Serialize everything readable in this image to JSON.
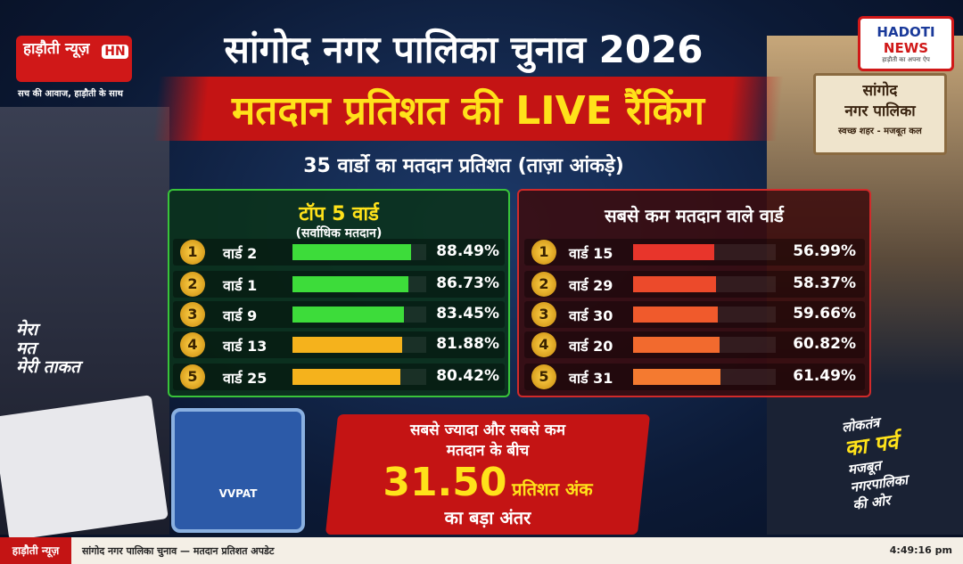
{
  "brand": {
    "name": "हाड़ौती न्यूज़",
    "badge": "HN",
    "tagline": "सच की आवाज, हाड़ौती के साथ"
  },
  "logo": {
    "line1": "HADOTI",
    "line2": "NEWS",
    "tagline": "हाड़ौती का अपना ऐप"
  },
  "header": {
    "title": "सांगोद नगर पालिका चुनाव 2026",
    "headline": "मतदान प्रतिशत की LIVE रैंकिंग",
    "subtitle": "35 वार्डो का मतदान प्रतिशत (ताज़ा आंकड़े)"
  },
  "building": {
    "line1": "सांगोद",
    "line2": "नगर पालिका",
    "line3": "स्वच्छ शहर - मजबूत कल"
  },
  "top_panel": {
    "title": "टॉप 5 वार्ड",
    "subtitle": "(सर्वाधिक मतदान)",
    "rows": [
      {
        "rank": 1,
        "ward": "वार्ड 2",
        "value": 88.49,
        "value_label": "88.49%",
        "color": "#3ddc3a"
      },
      {
        "rank": 2,
        "ward": "वार्ड 1",
        "value": 86.73,
        "value_label": "86.73%",
        "color": "#3ddc3a"
      },
      {
        "rank": 3,
        "ward": "वार्ड 9",
        "value": 83.45,
        "value_label": "83.45%",
        "color": "#3ddc3a"
      },
      {
        "rank": 4,
        "ward": "वार्ड 13",
        "value": 81.88,
        "value_label": "81.88%",
        "color": "#f5b21c"
      },
      {
        "rank": 5,
        "ward": "वार्ड 25",
        "value": 80.42,
        "value_label": "80.42%",
        "color": "#f5b21c"
      }
    ]
  },
  "bottom_panel": {
    "title": "सबसे कम मतदान वाले वार्ड",
    "rows": [
      {
        "rank": 1,
        "ward": "वार्ड 15",
        "value": 56.99,
        "value_label": "56.99%",
        "color": "#e8352b"
      },
      {
        "rank": 2,
        "ward": "वार्ड 29",
        "value": 58.37,
        "value_label": "58.37%",
        "color": "#ec4a2b"
      },
      {
        "rank": 3,
        "ward": "वार्ड 30",
        "value": 59.66,
        "value_label": "59.66%",
        "color": "#f05a2c"
      },
      {
        "rank": 4,
        "ward": "वार्ड 20",
        "value": 60.82,
        "value_label": "60.82%",
        "color": "#f26a2e"
      },
      {
        "rank": 5,
        "ward": "वार्ड 31",
        "value": 61.49,
        "value_label": "61.49%",
        "color": "#f47a30"
      }
    ]
  },
  "slogan": {
    "line1": "मेरा",
    "line2": "मत",
    "line3": "मेरी ताकत"
  },
  "vvpat": "VVPAT",
  "gap": {
    "line1": "सबसे ज्यादा और सबसे कम",
    "line2": "मतदान के बीच",
    "value": "31.50",
    "unit": "प्रतिशत अंक",
    "line3": "का बड़ा अंतर"
  },
  "right_slogan": {
    "line1": "लोकतंत्र",
    "line2": "का पर्व",
    "line3": "मजबूत",
    "line4": "नगरपालिका",
    "line5": "की ओर"
  },
  "ticker": {
    "label": "हाड़ौती न्यूज़",
    "text": "सांगोद नगर पालिका चुनाव — मतदान प्रतिशत अपडेट",
    "time": "4:49:16 pm"
  }
}
